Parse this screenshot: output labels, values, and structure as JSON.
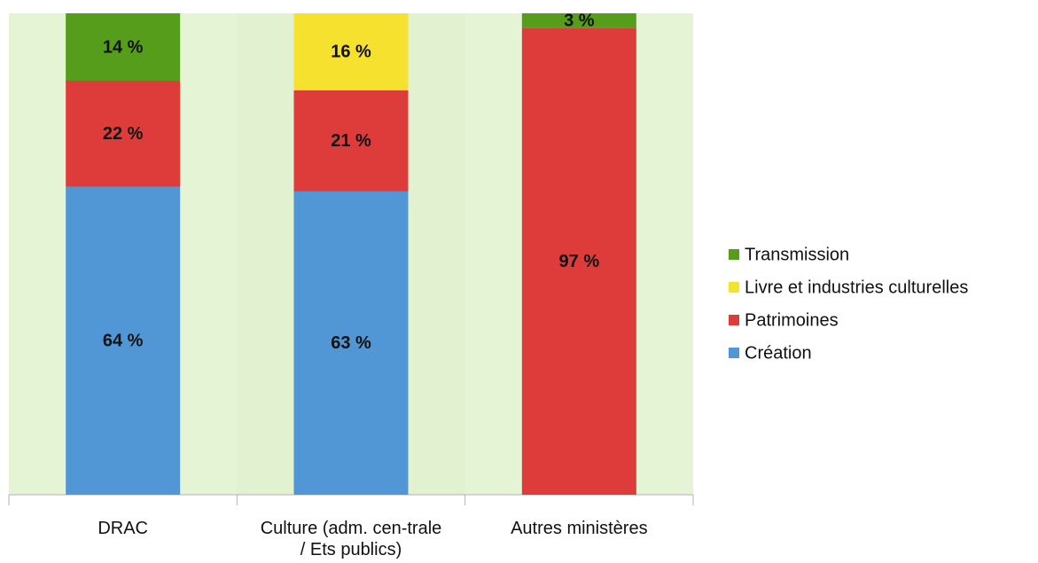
{
  "chart_data": {
    "type": "stacked_bar",
    "categories": [
      "DRAC",
      "Culture (adm. cen-trale / Ets publics)",
      "Autres ministères"
    ],
    "series": [
      {
        "name": "Création",
        "color": "#5197d5",
        "values": [
          64,
          63,
          null
        ],
        "value_labels": [
          "64 %",
          "63 %",
          null
        ]
      },
      {
        "name": "Patrimoines",
        "color": "#dd3c3a",
        "values": [
          22,
          21,
          97
        ],
        "value_labels": [
          "22 %",
          "21 %",
          "97 %"
        ]
      },
      {
        "name": "Livre et industries culturelles",
        "color": "#f5e12e",
        "values": [
          null,
          16,
          null
        ],
        "value_labels": [
          null,
          "16 %",
          null
        ]
      },
      {
        "name": "Transmission",
        "color": "#579d1c",
        "values": [
          14,
          null,
          3
        ],
        "value_labels": [
          "14 %",
          null,
          "3 %"
        ]
      }
    ],
    "ylim": [
      0,
      100
    ],
    "legend": "right"
  }
}
